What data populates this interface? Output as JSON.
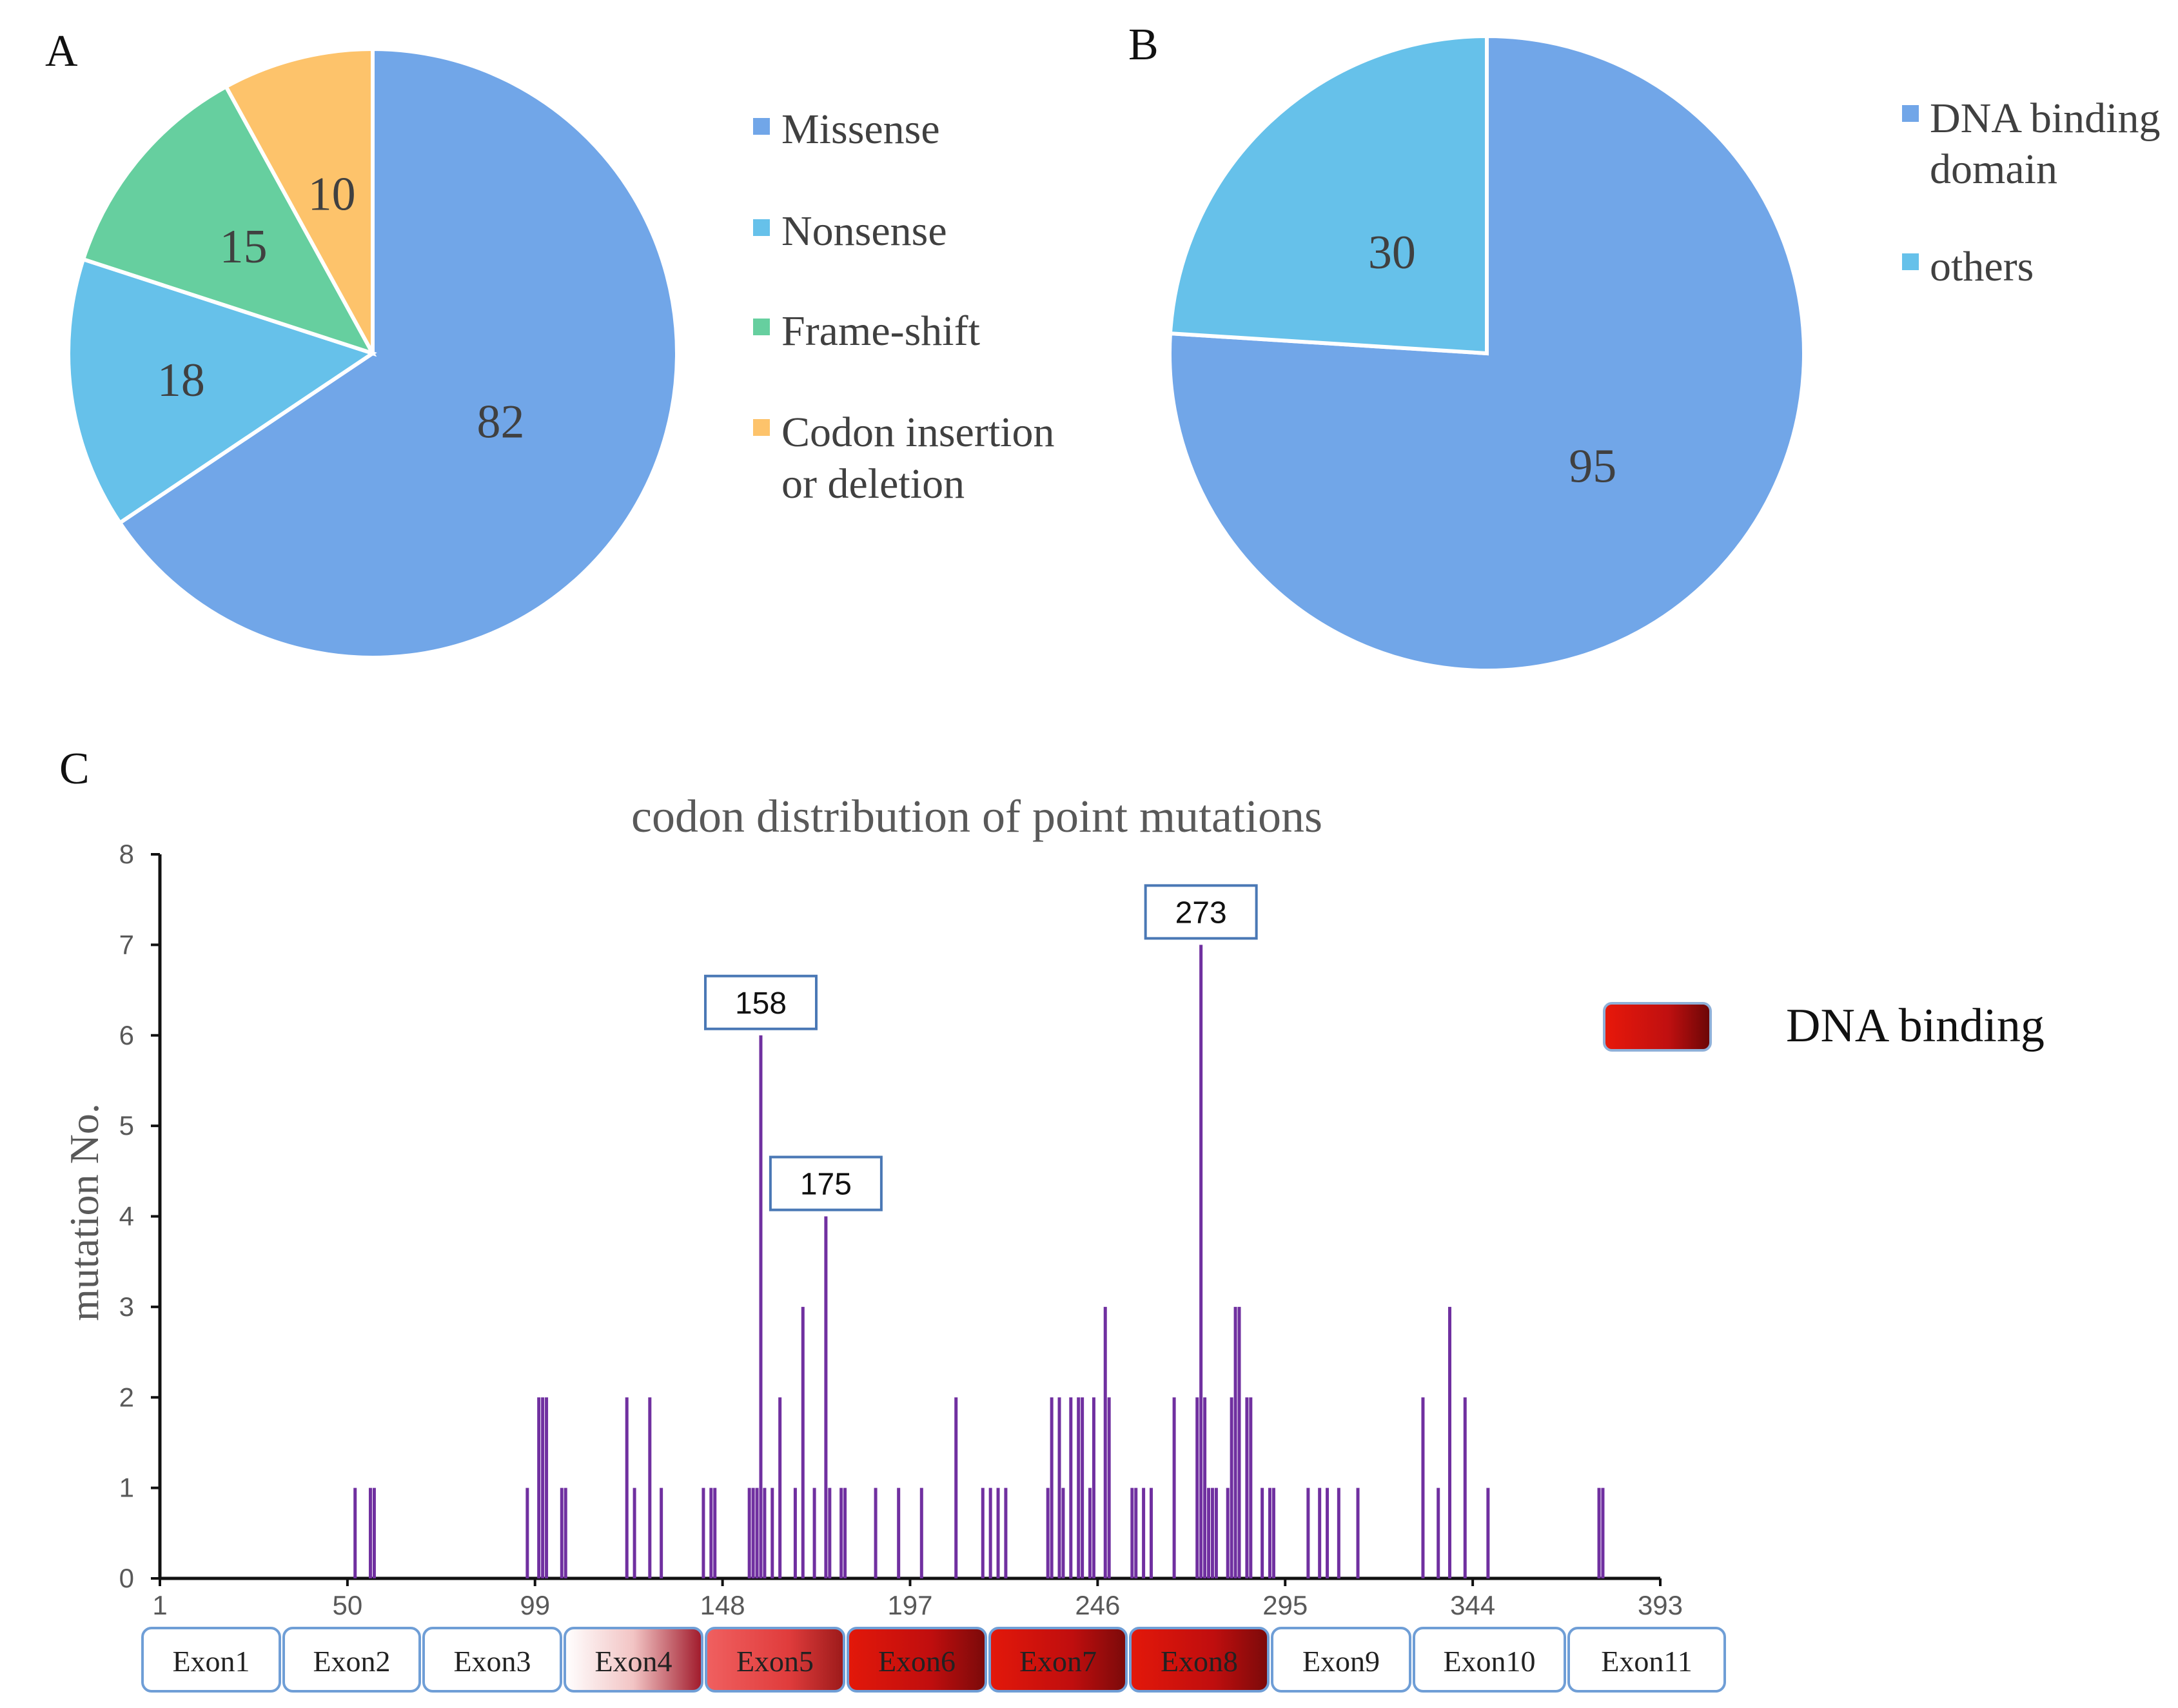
{
  "chart_data": [
    {
      "type": "pie",
      "panel_label": "A",
      "title": "",
      "slices": [
        {
          "name": "Missense",
          "value": 82,
          "color": "#71A6E8"
        },
        {
          "name": "Nonsense",
          "value": 18,
          "color": "#66C1EA"
        },
        {
          "name": "Frame-shift",
          "value": 15,
          "color": "#66CF9F"
        },
        {
          "name": "Codon insertion or deletion",
          "value": 10,
          "color": "#FDC36B"
        }
      ],
      "legend": {
        "placement": "right",
        "entries": [
          "Missense",
          "Nonsense",
          "Frame-shift",
          "Codon insertion",
          "or deletion"
        ]
      }
    },
    {
      "type": "pie",
      "panel_label": "B",
      "title": "",
      "slices": [
        {
          "name": "DNA binding domain",
          "value": 95,
          "color": "#71A6E8"
        },
        {
          "name": "others",
          "value": 30,
          "color": "#66C1EA"
        }
      ],
      "legend": {
        "placement": "right",
        "entries": [
          "DNA binding",
          "domain",
          "others"
        ]
      }
    },
    {
      "type": "bar",
      "panel_label": "C",
      "title": "codon distribution of point mutations",
      "xlabel": "",
      "ylabel": "mutation No.",
      "xlim": [
        1,
        393
      ],
      "ylim": [
        0,
        8
      ],
      "x_ticks": [
        1,
        50,
        99,
        148,
        197,
        246,
        295,
        344,
        393
      ],
      "y_ticks": [
        0,
        1,
        2,
        3,
        4,
        5,
        6,
        7,
        8
      ],
      "bar_color": "#7030A0",
      "x": [
        52,
        56,
        57,
        97,
        100,
        101,
        102,
        106,
        107,
        123,
        125,
        129,
        132,
        143,
        145,
        146,
        155,
        156,
        157,
        158,
        159,
        161,
        163,
        167,
        169,
        172,
        175,
        176,
        179,
        180,
        188,
        194,
        200,
        209,
        216,
        218,
        220,
        222,
        233,
        234,
        236,
        237,
        239,
        241,
        242,
        244,
        245,
        248,
        249,
        255,
        256,
        258,
        260,
        266,
        272,
        273,
        274,
        275,
        276,
        277,
        280,
        281,
        282,
        283,
        285,
        286,
        289,
        291,
        292,
        301,
        304,
        306,
        309,
        314,
        331,
        335,
        338,
        342,
        348,
        377,
        378
      ],
      "values": [
        1,
        1,
        1,
        1,
        2,
        2,
        2,
        1,
        1,
        2,
        1,
        2,
        1,
        1,
        1,
        1,
        1,
        1,
        1,
        6,
        1,
        1,
        2,
        1,
        3,
        1,
        4,
        1,
        1,
        1,
        1,
        1,
        1,
        2,
        1,
        1,
        1,
        1,
        1,
        2,
        2,
        1,
        2,
        2,
        2,
        1,
        2,
        3,
        2,
        1,
        1,
        1,
        1,
        2,
        2,
        7,
        2,
        1,
        1,
        1,
        1,
        2,
        3,
        3,
        2,
        2,
        1,
        1,
        1,
        1,
        1,
        1,
        1,
        1,
        2,
        1,
        3,
        2,
        1,
        1,
        1
      ],
      "callouts": [
        {
          "codon": 158,
          "label": "158"
        },
        {
          "codon": 175,
          "label": "175"
        },
        {
          "codon": 273,
          "label": "273"
        }
      ],
      "exons": [
        {
          "label": "Exon1",
          "dna_binding": false
        },
        {
          "label": "Exon2",
          "dna_binding": false
        },
        {
          "label": "Exon3",
          "dna_binding": false
        },
        {
          "label": "Exon4",
          "dna_binding": true,
          "fill": "gradient-light"
        },
        {
          "label": "Exon5",
          "dna_binding": true,
          "fill": "gradient-mid"
        },
        {
          "label": "Exon6",
          "dna_binding": true,
          "fill": "gradient-dark"
        },
        {
          "label": "Exon7",
          "dna_binding": true,
          "fill": "gradient-dark"
        },
        {
          "label": "Exon8",
          "dna_binding": true,
          "fill": "gradient-dark"
        },
        {
          "label": "Exon9",
          "dna_binding": false
        },
        {
          "label": "Exon10",
          "dna_binding": false
        },
        {
          "label": "Exon11",
          "dna_binding": false
        }
      ],
      "legend": {
        "placement": "top-right",
        "label": "DNA binding"
      }
    }
  ]
}
